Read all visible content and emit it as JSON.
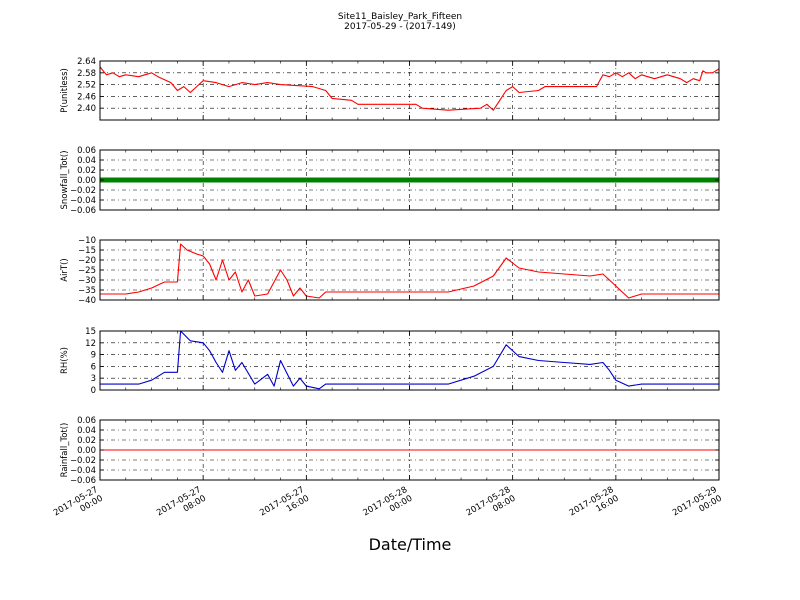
{
  "figure": {
    "title_line1": "Site11_Baisley_Park_Fifteen",
    "title_line2": "2017-05-29 - (2017-149)",
    "xlabel": "Date/Time"
  },
  "chart_data": {
    "type": "line",
    "x_range": [
      "2017-05-27 00:00",
      "2017-05-29 00:00"
    ],
    "x_ticks": [
      {
        "line1": "2017-05-27",
        "line2": "00:00",
        "t": "2017-05-27 00:00"
      },
      {
        "line1": "2017-05-27",
        "line2": "08:00",
        "t": "2017-05-27 08:00"
      },
      {
        "line1": "2017-05-27",
        "line2": "16:00",
        "t": "2017-05-27 16:00"
      },
      {
        "line1": "2017-05-28",
        "line2": "00:00",
        "t": "2017-05-28 00:00"
      },
      {
        "line1": "2017-05-28",
        "line2": "08:00",
        "t": "2017-05-28 08:00"
      },
      {
        "line1": "2017-05-28",
        "line2": "16:00",
        "t": "2017-05-28 16:00"
      },
      {
        "line1": "2017-05-29",
        "line2": "00:00",
        "t": "2017-05-29 00:00"
      }
    ],
    "grid": true,
    "panels": [
      {
        "ylabel": "P(unitless)",
        "ylim": [
          2.34,
          2.64
        ],
        "yticks": [
          "2.64",
          "2.58",
          "2.52",
          "2.46",
          "2.40"
        ],
        "ytick_values": [
          2.64,
          2.58,
          2.52,
          2.46,
          2.4
        ],
        "color": "#ff0000",
        "style": "line",
        "series": [
          [
            "2017-05-27 00:00",
            2.61
          ],
          [
            "2017-05-27 00:30",
            2.57
          ],
          [
            "2017-05-27 01:00",
            2.58
          ],
          [
            "2017-05-27 01:30",
            2.56
          ],
          [
            "2017-05-27 02:00",
            2.57
          ],
          [
            "2017-05-27 03:00",
            2.56
          ],
          [
            "2017-05-27 04:00",
            2.58
          ],
          [
            "2017-05-27 04:30",
            2.56
          ],
          [
            "2017-05-27 05:30",
            2.53
          ],
          [
            "2017-05-27 06:00",
            2.49
          ],
          [
            "2017-05-27 06:30",
            2.51
          ],
          [
            "2017-05-27 07:00",
            2.48
          ],
          [
            "2017-05-27 07:30",
            2.51
          ],
          [
            "2017-05-27 08:00",
            2.54
          ],
          [
            "2017-05-27 09:00",
            2.53
          ],
          [
            "2017-05-27 10:00",
            2.51
          ],
          [
            "2017-05-27 11:00",
            2.53
          ],
          [
            "2017-05-27 12:00",
            2.52
          ],
          [
            "2017-05-27 13:00",
            2.53
          ],
          [
            "2017-05-27 14:00",
            2.52
          ],
          [
            "2017-05-27 16:30",
            2.51
          ],
          [
            "2017-05-27 17:30",
            2.49
          ],
          [
            "2017-05-27 18:00",
            2.45
          ],
          [
            "2017-05-27 19:30",
            2.44
          ],
          [
            "2017-05-27 20:00",
            2.42
          ],
          [
            "2017-05-27 23:00",
            2.42
          ],
          [
            "2017-05-28 00:30",
            2.42
          ],
          [
            "2017-05-28 01:00",
            2.4
          ],
          [
            "2017-05-28 03:00",
            2.39
          ],
          [
            "2017-05-28 05:30",
            2.4
          ],
          [
            "2017-05-28 06:00",
            2.42
          ],
          [
            "2017-05-28 06:30",
            2.39
          ],
          [
            "2017-05-28 07:00",
            2.44
          ],
          [
            "2017-05-28 07:30",
            2.49
          ],
          [
            "2017-05-28 08:00",
            2.51
          ],
          [
            "2017-05-28 08:30",
            2.48
          ],
          [
            "2017-05-28 10:00",
            2.49
          ],
          [
            "2017-05-28 10:30",
            2.51
          ],
          [
            "2017-05-28 12:00",
            2.51
          ],
          [
            "2017-05-28 14:30",
            2.51
          ],
          [
            "2017-05-28 15:00",
            2.57
          ],
          [
            "2017-05-28 15:30",
            2.56
          ],
          [
            "2017-05-28 16:00",
            2.58
          ],
          [
            "2017-05-28 16:30",
            2.56
          ],
          [
            "2017-05-28 17:00",
            2.58
          ],
          [
            "2017-05-28 17:30",
            2.55
          ],
          [
            "2017-05-28 18:00",
            2.57
          ],
          [
            "2017-05-28 19:00",
            2.55
          ],
          [
            "2017-05-28 20:00",
            2.57
          ],
          [
            "2017-05-28 21:00",
            2.55
          ],
          [
            "2017-05-28 21:30",
            2.53
          ],
          [
            "2017-05-28 22:00",
            2.55
          ],
          [
            "2017-05-28 22:30",
            2.54
          ],
          [
            "2017-05-28 22:45",
            2.59
          ],
          [
            "2017-05-28 23:00",
            2.58
          ],
          [
            "2017-05-28 23:30",
            2.58
          ],
          [
            "2017-05-29 00:00",
            2.6
          ]
        ]
      },
      {
        "ylabel": "Snowfall_Tot()",
        "ylim": [
          -0.06,
          0.06
        ],
        "yticks": [
          "0.06",
          "0.04",
          "0.02",
          "0.00",
          "−0.02",
          "−0.04",
          "−0.06"
        ],
        "ytick_values": [
          0.06,
          0.04,
          0.02,
          0.0,
          -0.02,
          -0.04,
          -0.06
        ],
        "color": "#008000",
        "style": "thick",
        "series": [
          [
            "2017-05-27 00:00",
            0.0
          ],
          [
            "2017-05-29 00:00",
            0.0
          ]
        ]
      },
      {
        "ylabel": "AirT()",
        "ylim": [
          -40,
          -10
        ],
        "yticks": [
          "−10",
          "−15",
          "−20",
          "−25",
          "−30",
          "−35",
          "−40"
        ],
        "ytick_values": [
          -10,
          -15,
          -20,
          -25,
          -30,
          -35,
          -40
        ],
        "color": "#ff0000",
        "style": "line",
        "series": [
          [
            "2017-05-27 00:00",
            -37
          ],
          [
            "2017-05-27 02:00",
            -37
          ],
          [
            "2017-05-27 03:00",
            -36
          ],
          [
            "2017-05-27 04:00",
            -34
          ],
          [
            "2017-05-27 05:00",
            -31
          ],
          [
            "2017-05-27 06:00",
            -31
          ],
          [
            "2017-05-27 06:15",
            -12
          ],
          [
            "2017-05-27 06:45",
            -15
          ],
          [
            "2017-05-27 07:30",
            -17
          ],
          [
            "2017-05-27 08:00",
            -18
          ],
          [
            "2017-05-27 08:30",
            -22
          ],
          [
            "2017-05-27 09:00",
            -30
          ],
          [
            "2017-05-27 09:30",
            -20
          ],
          [
            "2017-05-27 10:00",
            -30
          ],
          [
            "2017-05-27 10:30",
            -26
          ],
          [
            "2017-05-27 11:00",
            -36
          ],
          [
            "2017-05-27 11:30",
            -30
          ],
          [
            "2017-05-27 12:00",
            -38
          ],
          [
            "2017-05-27 13:00",
            -37
          ],
          [
            "2017-05-27 14:00",
            -25
          ],
          [
            "2017-05-27 14:30",
            -30
          ],
          [
            "2017-05-27 15:00",
            -38
          ],
          [
            "2017-05-27 15:30",
            -34
          ],
          [
            "2017-05-27 16:00",
            -38
          ],
          [
            "2017-05-27 17:00",
            -39
          ],
          [
            "2017-05-27 17:30",
            -36
          ],
          [
            "2017-05-28 03:00",
            -36
          ],
          [
            "2017-05-28 05:00",
            -33
          ],
          [
            "2017-05-28 06:30",
            -28
          ],
          [
            "2017-05-28 07:30",
            -19
          ],
          [
            "2017-05-28 08:30",
            -24
          ],
          [
            "2017-05-28 10:00",
            -26
          ],
          [
            "2017-05-28 12:00",
            -27
          ],
          [
            "2017-05-28 14:00",
            -28
          ],
          [
            "2017-05-28 15:00",
            -27
          ],
          [
            "2017-05-28 15:30",
            -30
          ],
          [
            "2017-05-28 16:00",
            -33
          ],
          [
            "2017-05-28 17:00",
            -39
          ],
          [
            "2017-05-28 18:00",
            -37
          ],
          [
            "2017-05-29 00:00",
            -37
          ]
        ]
      },
      {
        "ylabel": "RH(%)",
        "ylim": [
          0,
          15
        ],
        "yticks": [
          "15",
          "12",
          "9",
          "6",
          "3",
          "0"
        ],
        "ytick_values": [
          15,
          12,
          9,
          6,
          3,
          0
        ],
        "color": "#0000cc",
        "style": "line",
        "series": [
          [
            "2017-05-27 00:00",
            1.5
          ],
          [
            "2017-05-27 03:00",
            1.5
          ],
          [
            "2017-05-27 04:00",
            2.5
          ],
          [
            "2017-05-27 05:00",
            4.5
          ],
          [
            "2017-05-27 06:00",
            4.5
          ],
          [
            "2017-05-27 06:15",
            15
          ],
          [
            "2017-05-27 07:00",
            12.5
          ],
          [
            "2017-05-27 08:00",
            12
          ],
          [
            "2017-05-27 08:30",
            10
          ],
          [
            "2017-05-27 09:00",
            7
          ],
          [
            "2017-05-27 09:30",
            4.5
          ],
          [
            "2017-05-27 10:00",
            10
          ],
          [
            "2017-05-27 10:30",
            5
          ],
          [
            "2017-05-27 11:00",
            7
          ],
          [
            "2017-05-27 12:00",
            1.5
          ],
          [
            "2017-05-27 13:00",
            4
          ],
          [
            "2017-05-27 13:30",
            1
          ],
          [
            "2017-05-27 14:00",
            7.5
          ],
          [
            "2017-05-27 15:00",
            1
          ],
          [
            "2017-05-27 15:30",
            3
          ],
          [
            "2017-05-27 16:00",
            1
          ],
          [
            "2017-05-27 17:00",
            0.3
          ],
          [
            "2017-05-27 17:30",
            1.5
          ],
          [
            "2017-05-28 03:00",
            1.5
          ],
          [
            "2017-05-28 05:00",
            3.5
          ],
          [
            "2017-05-28 06:30",
            6
          ],
          [
            "2017-05-28 07:30",
            11.5
          ],
          [
            "2017-05-28 08:30",
            8.5
          ],
          [
            "2017-05-28 10:00",
            7.5
          ],
          [
            "2017-05-28 12:00",
            7
          ],
          [
            "2017-05-28 14:00",
            6.5
          ],
          [
            "2017-05-28 15:00",
            7
          ],
          [
            "2017-05-28 15:30",
            5
          ],
          [
            "2017-05-28 16:00",
            2.5
          ],
          [
            "2017-05-28 17:00",
            1
          ],
          [
            "2017-05-28 18:00",
            1.5
          ],
          [
            "2017-05-29 00:00",
            1.5
          ]
        ]
      },
      {
        "ylabel": "Rainfall_Tot()",
        "ylim": [
          -0.06,
          0.06
        ],
        "yticks": [
          "0.06",
          "0.04",
          "0.02",
          "0.00",
          "−0.02",
          "−0.04",
          "−0.06"
        ],
        "ytick_values": [
          0.06,
          0.04,
          0.02,
          0.0,
          -0.02,
          -0.04,
          -0.06
        ],
        "color": "#ff0000",
        "style": "line",
        "series": [
          [
            "2017-05-27 00:00",
            0.0
          ],
          [
            "2017-05-29 00:00",
            0.0
          ]
        ]
      }
    ]
  }
}
